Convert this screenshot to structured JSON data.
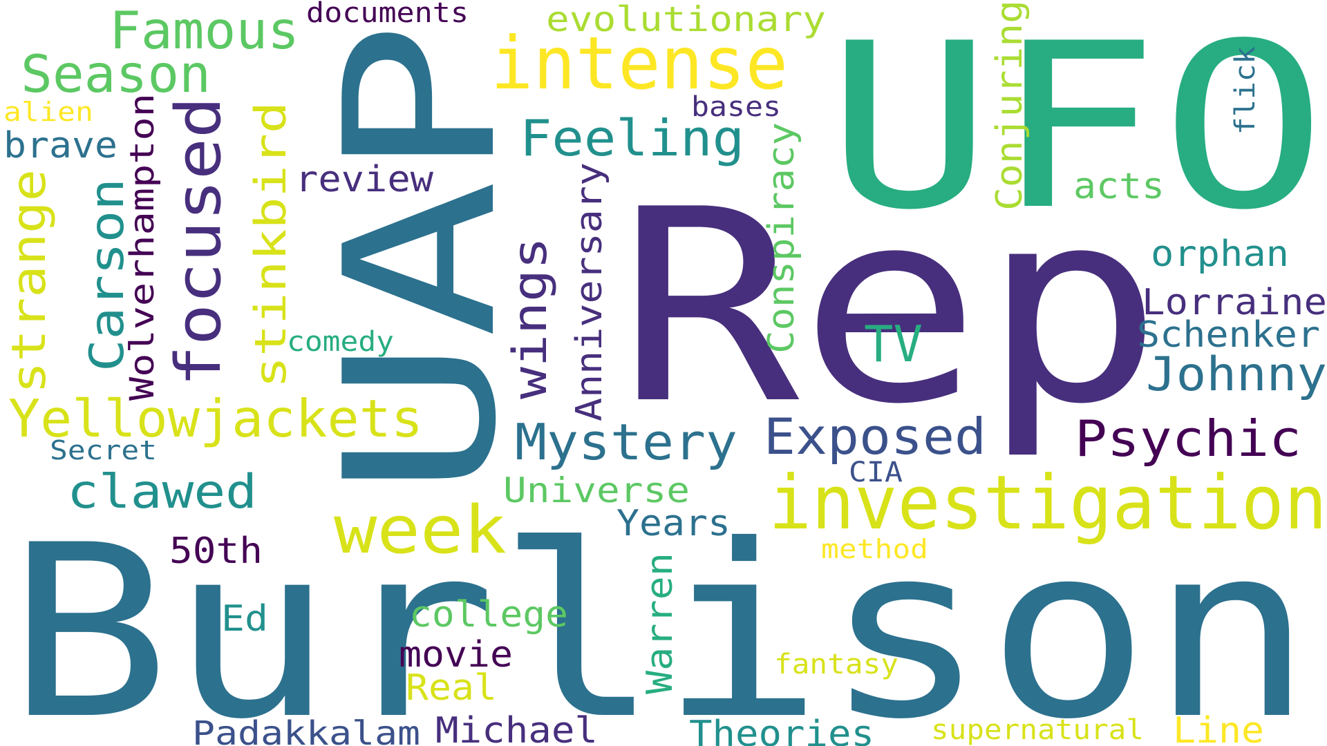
{
  "words": [
    {
      "text": "UFO"
    },
    {
      "text": "Rep"
    },
    {
      "text": "UAP"
    },
    {
      "text": "Burlison"
    },
    {
      "text": "investigation"
    },
    {
      "text": "intense"
    },
    {
      "text": "Yellowjackets"
    },
    {
      "text": "focused"
    },
    {
      "text": "Famous"
    },
    {
      "text": "Season"
    },
    {
      "text": "strange"
    },
    {
      "text": "Carson"
    },
    {
      "text": "stinkbird"
    },
    {
      "text": "Feeling"
    },
    {
      "text": "wings"
    },
    {
      "text": "Mystery"
    },
    {
      "text": "Exposed"
    },
    {
      "text": "Psychic"
    },
    {
      "text": "Johnny"
    },
    {
      "text": "week"
    },
    {
      "text": "clawed"
    },
    {
      "text": "Conjuring"
    },
    {
      "text": "evolutionary"
    },
    {
      "text": "documents"
    },
    {
      "text": "alien"
    },
    {
      "text": "brave"
    },
    {
      "text": "Wolverhampton"
    },
    {
      "text": "review"
    },
    {
      "text": "bases"
    },
    {
      "text": "acts"
    },
    {
      "text": "flick"
    },
    {
      "text": "orphan"
    },
    {
      "text": "Lorraine"
    },
    {
      "text": "Schenker"
    },
    {
      "text": "Conspiracy"
    },
    {
      "text": "Anniversary"
    },
    {
      "text": "TV"
    },
    {
      "text": "comedy"
    },
    {
      "text": "Secret"
    },
    {
      "text": "CIA"
    },
    {
      "text": "Universe"
    },
    {
      "text": "Years"
    },
    {
      "text": "50th"
    },
    {
      "text": "method"
    },
    {
      "text": "Ed"
    },
    {
      "text": "college"
    },
    {
      "text": "Warren"
    },
    {
      "text": "movie"
    },
    {
      "text": "fantasy"
    },
    {
      "text": "Real"
    },
    {
      "text": "Padakkalam"
    },
    {
      "text": "Michael"
    },
    {
      "text": "Theories"
    },
    {
      "text": "supernatural"
    },
    {
      "text": "Line"
    }
  ]
}
